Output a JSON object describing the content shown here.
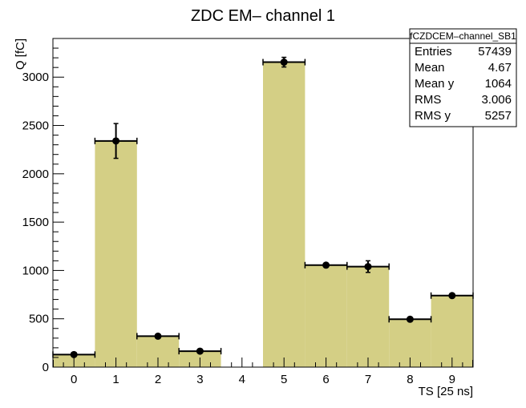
{
  "chart_data": {
    "type": "bar",
    "title": "ZDC EM– channel 1",
    "xlabel": "TS [25 ns]",
    "ylabel": "Q [fC]",
    "xlim": [
      -0.5,
      9.5
    ],
    "ylim": [
      0,
      3400
    ],
    "x_ticks": [
      "0",
      "1",
      "2",
      "3",
      "4",
      "5",
      "6",
      "7",
      "8",
      "9"
    ],
    "y_ticks": [
      "0",
      "500",
      "1000",
      "1500",
      "2000",
      "2500",
      "3000"
    ],
    "y_tick_values": [
      0,
      500,
      1000,
      1500,
      2000,
      2500,
      3000
    ],
    "bins": [
      0,
      1,
      2,
      3,
      4,
      5,
      6,
      7,
      8,
      9
    ],
    "values": [
      130,
      2340,
      320,
      165,
      0,
      3155,
      1055,
      1040,
      495,
      740
    ],
    "errors": [
      0,
      180,
      20,
      15,
      0,
      50,
      15,
      60,
      10,
      15
    ],
    "fill_color": "#d4cf85",
    "grid": false,
    "stats_box": {
      "name": "fCZDCEM–channel_SB1",
      "rows": [
        {
          "label": "Entries",
          "value": "57439"
        },
        {
          "label": "Mean",
          "value": "4.67"
        },
        {
          "label": "Mean y",
          "value": "1064"
        },
        {
          "label": "RMS",
          "value": "3.006"
        },
        {
          "label": "RMS y",
          "value": "5257"
        }
      ],
      "placement": "top-right"
    }
  }
}
